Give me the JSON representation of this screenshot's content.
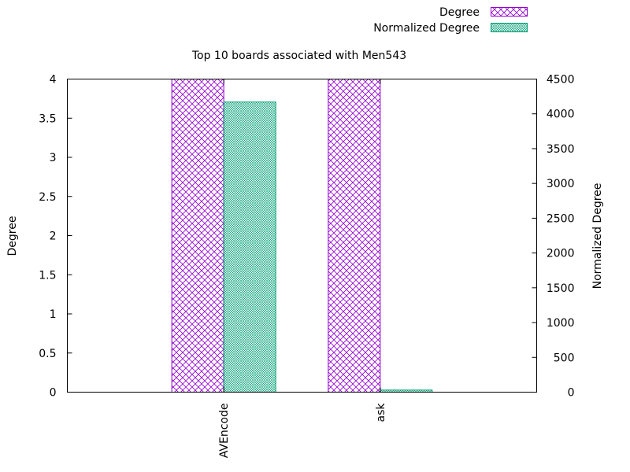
{
  "chart_data": {
    "type": "bar",
    "title": "Top 10 boards associated with Men543",
    "categories": [
      "AVEncode",
      "ask"
    ],
    "series": [
      {
        "name": "Degree",
        "axis": "left",
        "values": [
          4,
          4
        ],
        "color": "#9400d3",
        "pattern": "crosshatch"
      },
      {
        "name": "Normalized Degree",
        "axis": "right",
        "values": [
          4170,
          30
        ],
        "color": "#009e73",
        "pattern": "fine-dots"
      }
    ],
    "ylabel": "Degree",
    "y2label": "Normalized Degree",
    "ylim": [
      0,
      4
    ],
    "y2lim": [
      0,
      4500
    ],
    "yticks": [
      "0",
      "0.5",
      "1",
      "1.5",
      "2",
      "2.5",
      "3",
      "3.5",
      "4"
    ],
    "y2ticks": [
      "0",
      "500",
      "1000",
      "1500",
      "2000",
      "2500",
      "3000",
      "3500",
      "4000",
      "4500"
    ],
    "grid": false,
    "legend_position": "top-right",
    "x_tick_rotation": "vertical"
  }
}
